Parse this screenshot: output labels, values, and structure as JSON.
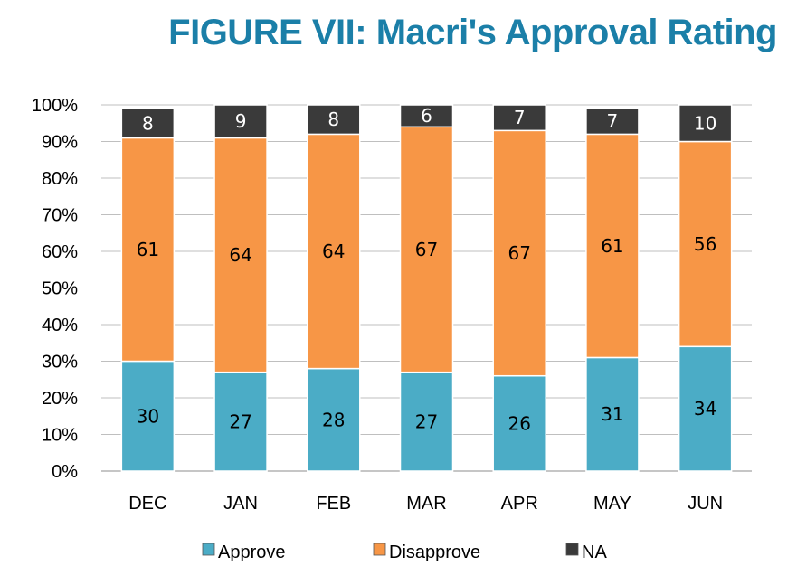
{
  "chart_data": {
    "type": "bar",
    "stacked": true,
    "title": "FIGURE VII: Macri's Approval Rating",
    "categories": [
      "DEC",
      "JAN",
      "FEB",
      "MAR",
      "APR",
      "MAY",
      "JUN"
    ],
    "series": [
      {
        "name": "Approve",
        "color": "#4bacc6",
        "label_color": "#000000",
        "values": [
          30,
          27,
          28,
          27,
          26,
          31,
          34
        ]
      },
      {
        "name": "Disapprove",
        "color": "#f79646",
        "label_color": "#000000",
        "values": [
          61,
          64,
          64,
          67,
          67,
          61,
          56
        ]
      },
      {
        "name": "NA",
        "color": "#3a3a3a",
        "label_color": "#ffffff",
        "values": [
          8,
          9,
          8,
          6,
          7,
          7,
          10
        ]
      }
    ],
    "y_ticks": [
      "0%",
      "10%",
      "20%",
      "30%",
      "40%",
      "50%",
      "60%",
      "70%",
      "80%",
      "90%",
      "100%"
    ],
    "ylim": [
      0,
      100
    ],
    "xlabel": "",
    "ylabel": "",
    "grid": true,
    "legend_position": "bottom"
  }
}
